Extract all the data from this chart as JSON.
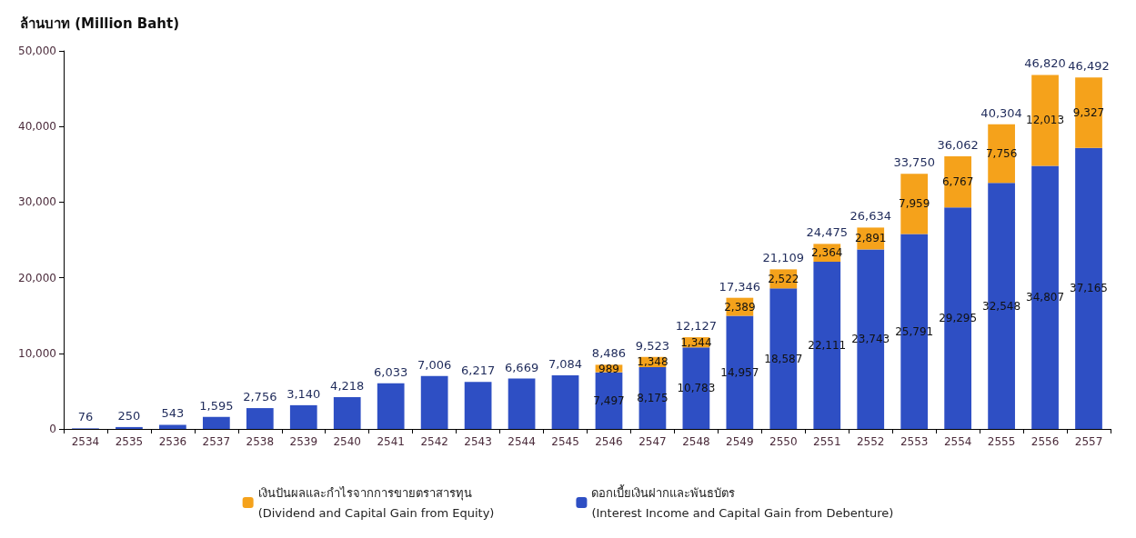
{
  "chart_data": {
    "type": "bar",
    "stacked": true,
    "ylabel": "ล้านบาท (Million Baht)",
    "categories": [
      "2534",
      "2535",
      "2536",
      "2537",
      "2538",
      "2539",
      "2540",
      "2541",
      "2542",
      "2543",
      "2544",
      "2545",
      "2546",
      "2547",
      "2548",
      "2549",
      "2550",
      "2551",
      "2552",
      "2553",
      "2554",
      "2555",
      "2556",
      "2557"
    ],
    "series": [
      {
        "name": "ดอกเบี้ยเงินฝากและพันธบัตร\n(Interest Income and Capital Gain from Debenture)",
        "color": "#2e4fc4",
        "values": [
          76,
          250,
          543,
          1595,
          2756,
          3140,
          4218,
          6033,
          7006,
          6217,
          6669,
          7084,
          7497,
          8175,
          10783,
          14957,
          18587,
          22111,
          23743,
          25791,
          29295,
          32548,
          34807,
          37165
        ],
        "value_labels": [
          null,
          null,
          null,
          null,
          null,
          null,
          null,
          null,
          null,
          null,
          null,
          null,
          "7,497",
          "8,175",
          "10,783",
          "14,957",
          "18,587",
          "22,111",
          "23,743",
          "25,791",
          "29,295",
          "32,548",
          "34,807",
          "37,165"
        ]
      },
      {
        "name": "เงินปันผลและกำไรจากการขายตราสารทุน\n(Dividend and Capital Gain from Equity)",
        "color": "#f5a21b",
        "values": [
          null,
          null,
          null,
          null,
          null,
          null,
          null,
          null,
          null,
          null,
          null,
          null,
          989,
          1348,
          1344,
          2389,
          2522,
          2364,
          2891,
          7959,
          6767,
          7756,
          12013,
          9327
        ],
        "value_labels": [
          null,
          null,
          null,
          null,
          null,
          null,
          null,
          null,
          null,
          null,
          null,
          null,
          "989",
          "1,348",
          "1,344",
          "2,389",
          "2,522",
          "2,364",
          "2,891",
          "7,959",
          "6,767",
          "7,756",
          "12,013",
          "9,327"
        ]
      }
    ],
    "totals": [
      "76",
      "250",
      "543",
      "1,595",
      "2,756",
      "3,140",
      "4,218",
      "6,033",
      "7,006",
      "6,217",
      "6,669",
      "7,084",
      "8,486",
      "9,523",
      "12,127",
      "17,346",
      "21,109",
      "24,475",
      "26,634",
      "33,750",
      "36,062",
      "40,304",
      "46,820",
      "46,492"
    ],
    "ylim": [
      0,
      50000
    ],
    "yticks": [
      {
        "value": 0,
        "label": "0"
      },
      {
        "value": 10000,
        "label": "10,000"
      },
      {
        "value": 20000,
        "label": "20,000"
      },
      {
        "value": 30000,
        "label": "30,000"
      },
      {
        "value": 40000,
        "label": "40,000"
      },
      {
        "value": 50000,
        "label": "50,000"
      }
    ],
    "legend": "bottom"
  }
}
